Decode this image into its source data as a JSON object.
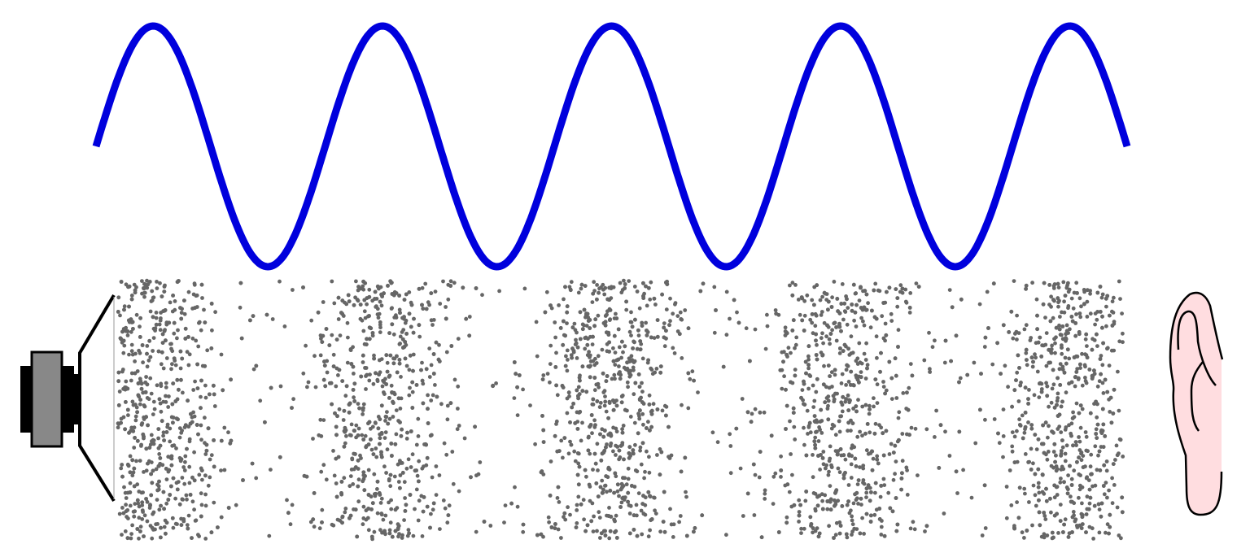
{
  "diagram": {
    "wave": {
      "cycles": 4.5,
      "color": "#0000dd"
    },
    "particles": {
      "color": "#666666",
      "compression_bands": 5
    },
    "source": {
      "icon": "loudspeaker-icon",
      "magnet_color": "#888888",
      "outline_color": "#000000"
    },
    "receiver": {
      "icon": "ear-icon",
      "fill_color": "#ffdde0",
      "outline_color": "#000000"
    }
  }
}
